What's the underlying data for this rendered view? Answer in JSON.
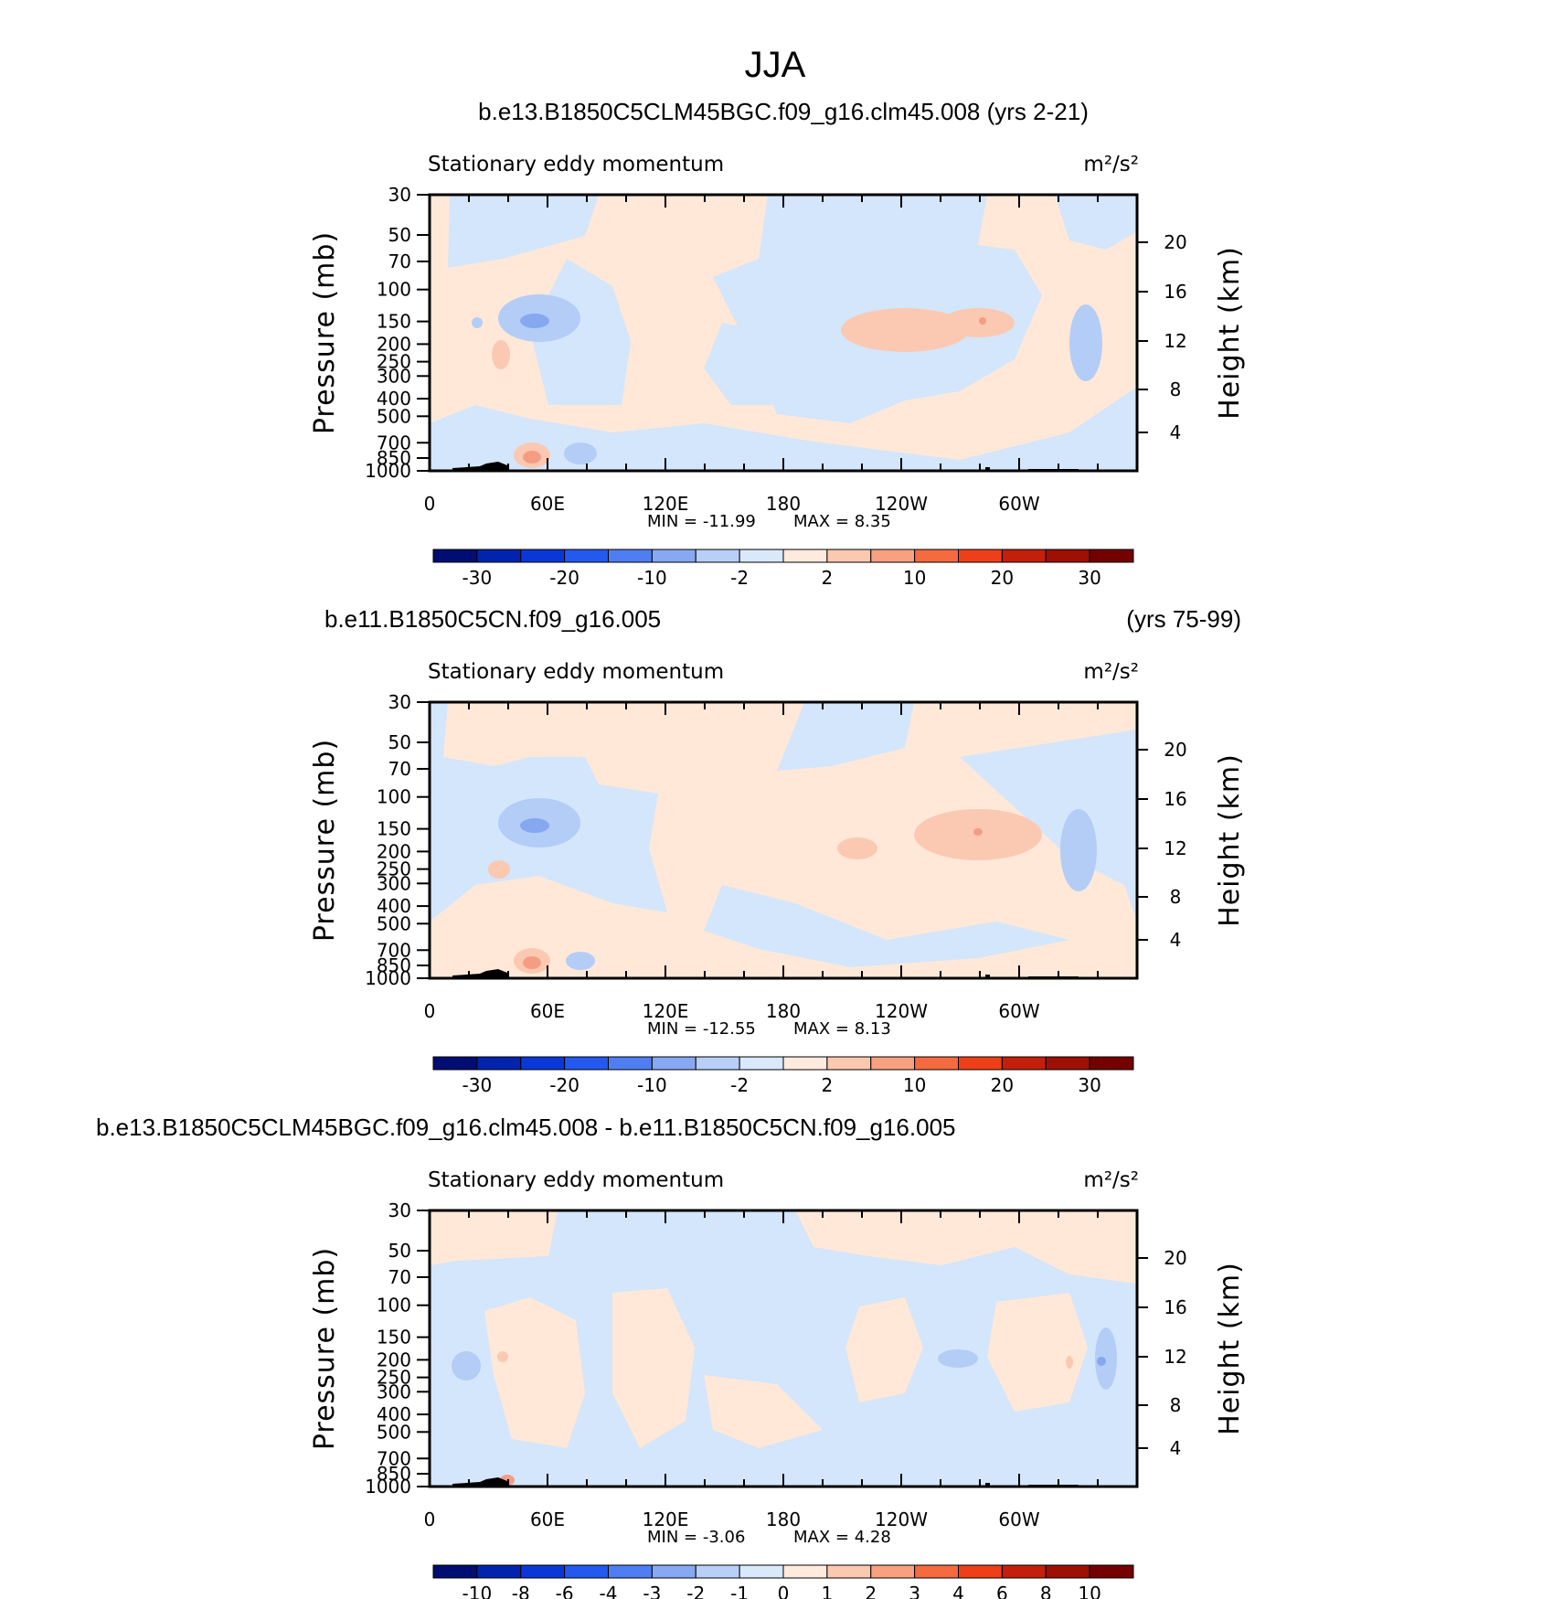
{
  "chart_data": {
    "type": "heatmap",
    "title": "JJA",
    "panels": [
      {
        "run_title_left": "b.e13.B1850C5CLM45BGC.f09_g16.clm45.008 (yrs 2-21)",
        "run_title_right": "",
        "subtitle": "Stationary eddy momentum",
        "units": "m²/s²",
        "ylabel": "Pressure (mb)",
        "ylabel_right": "Height (km)",
        "min_text": "MIN = -11.99",
        "max_text": "MAX = 8.35",
        "min": -11.99,
        "max": 8.35,
        "colorbar_labels": [
          "-30",
          "-20",
          "-10",
          "-2",
          "2",
          "10",
          "20",
          "30"
        ]
      },
      {
        "run_title_left": "b.e11.B1850C5CN.f09_g16.005",
        "run_title_right": "(yrs 75-99)",
        "subtitle": "Stationary eddy momentum",
        "units": "m²/s²",
        "ylabel": "Pressure (mb)",
        "ylabel_right": "Height (km)",
        "min_text": "MIN = -12.55",
        "max_text": "MAX = 8.13",
        "min": -12.55,
        "max": 8.13,
        "colorbar_labels": [
          "-30",
          "-20",
          "-10",
          "-2",
          "2",
          "10",
          "20",
          "30"
        ]
      },
      {
        "run_title_left": "b.e13.B1850C5CLM45BGC.f09_g16.clm45.008 - b.e11.B1850C5CN.f09_g16.005",
        "run_title_right": "",
        "subtitle": "Stationary eddy momentum",
        "units": "m²/s²",
        "ylabel": "Pressure (mb)",
        "ylabel_right": "Height (km)",
        "min_text": "MIN = -3.06",
        "max_text": "MAX = 4.28",
        "min": -3.06,
        "max": 4.28,
        "colorbar_labels": [
          "-10",
          "-8",
          "-6",
          "-4",
          "-3",
          "-2",
          "-1",
          "0",
          "1",
          "2",
          "3",
          "4",
          "6",
          "8",
          "10"
        ]
      }
    ],
    "x_ticks": [
      "0",
      "60E",
      "120E",
      "180",
      "120W",
      "60W"
    ],
    "pressure_ticks": [
      "30",
      "50",
      "70",
      "100",
      "150",
      "200",
      "250",
      "300",
      "400",
      "500",
      "700",
      "850",
      "1000"
    ],
    "height_ticks": [
      "20",
      "16",
      "12",
      "8",
      "4"
    ],
    "colors": {
      "neg_light": "#d3e6fb",
      "neg_mid": "#b3cdf7",
      "neg_strong": "#86a8f0",
      "pos_light": "#ffe8d8",
      "pos_mid": "#fbc9b2",
      "pos_strong": "#f59d82",
      "topography": "#000000"
    },
    "palette": [
      "#000d72",
      "#0024ad",
      "#0a38d8",
      "#2459f0",
      "#4f7ef3",
      "#87a8f3",
      "#b8cff7",
      "#d9e8fb",
      "#ffebde",
      "#fbc8b0",
      "#f8a080",
      "#f56a3f",
      "#ee3f19",
      "#c41f0a",
      "#9e1004",
      "#740000"
    ]
  }
}
